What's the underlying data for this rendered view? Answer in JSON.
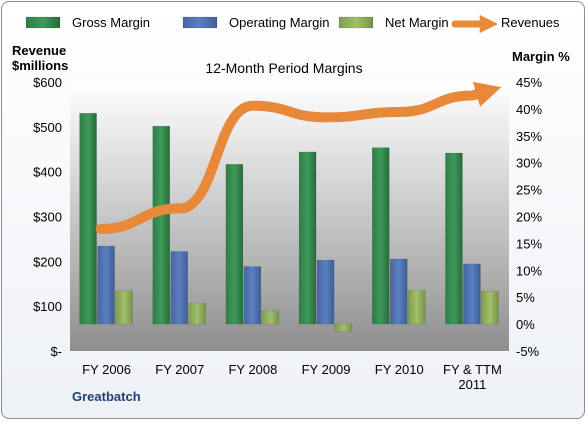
{
  "chart_data": {
    "type": "bar",
    "title": "12-Month Period Margins",
    "ylabel_left": [
      "Revenue",
      "$millions"
    ],
    "ylabel_right": "Margin %",
    "footer": "Greatbatch",
    "categories": [
      [
        "FY 2006"
      ],
      [
        "FY 2007"
      ],
      [
        "FY 2008"
      ],
      [
        "FY 2009"
      ],
      [
        "FY 2010"
      ],
      [
        "FY & TTM",
        "2011"
      ]
    ],
    "series": [
      {
        "name": "Gross Margin",
        "type": "bar",
        "axis": "right",
        "color": "#2e7d46",
        "values": [
          39.2,
          36.8,
          29.7,
          32.0,
          32.8,
          31.8
        ]
      },
      {
        "name": "Operating Margin",
        "type": "bar",
        "axis": "right",
        "color": "#4f73b3",
        "values": [
          14.5,
          13.5,
          10.7,
          11.9,
          12.1,
          11.2
        ]
      },
      {
        "name": "Net Margin",
        "type": "bar",
        "axis": "right",
        "color": "#8fb05a",
        "values": [
          6.2,
          3.9,
          2.5,
          -1.4,
          6.3,
          6.1
        ]
      },
      {
        "name": "Revenues",
        "type": "line",
        "axis": "left",
        "color": "#e8893a",
        "values": [
          272,
          318,
          547,
          521,
          533,
          570
        ]
      }
    ],
    "left_axis": {
      "min": 0,
      "max": 600,
      "ticks": [
        "$-",
        "$100",
        "$200",
        "$300",
        "$400",
        "$500",
        "$600"
      ]
    },
    "right_axis": {
      "min": -5,
      "max": 45,
      "ticks": [
        "-5%",
        "0%",
        "5%",
        "10%",
        "15%",
        "20%",
        "25%",
        "30%",
        "35%",
        "40%",
        "45%"
      ]
    },
    "grid": false,
    "legend_position": "top"
  }
}
